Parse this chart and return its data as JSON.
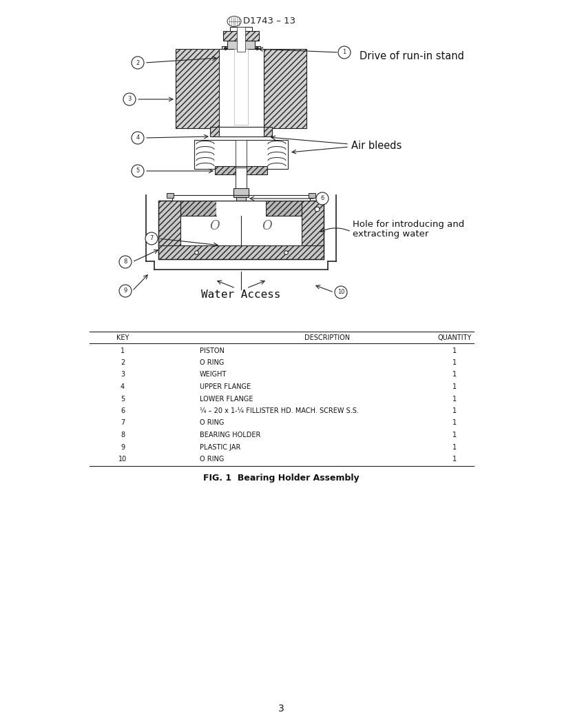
{
  "title": "D1743 – 13",
  "bg_color": "#ffffff",
  "lc": "#222222",
  "hatch_fc": "#d4d4d4",
  "table_headers": [
    "KEY",
    "DESCRIPTION",
    "QUANTITY"
  ],
  "table_rows": [
    [
      "1",
      "PISTON",
      "1"
    ],
    [
      "2",
      "O RING",
      "1"
    ],
    [
      "3",
      "WEIGHT",
      "1"
    ],
    [
      "4",
      "UPPER FLANGE",
      "1"
    ],
    [
      "5",
      "LOWER FLANGE",
      "1"
    ],
    [
      "6",
      "¼ – 20 x 1-¼ FILLISTER HD. MACH. SCREW S.S.",
      "1"
    ],
    [
      "7",
      "O RING",
      "1"
    ],
    [
      "8",
      "BEARING HOLDER",
      "1"
    ],
    [
      "9",
      "PLASTIC JAR",
      "1"
    ],
    [
      "10",
      "O RING",
      "1"
    ]
  ],
  "fig_caption": "FIG. 1  Bearing Holder Assembly",
  "page_number": "3",
  "label_drive": "Drive of run-in stand",
  "label_air": "Air bleeds",
  "label_hole_line1": "Hole for introducing and",
  "label_hole_line2": "extracting water",
  "label_water": "Water Access"
}
